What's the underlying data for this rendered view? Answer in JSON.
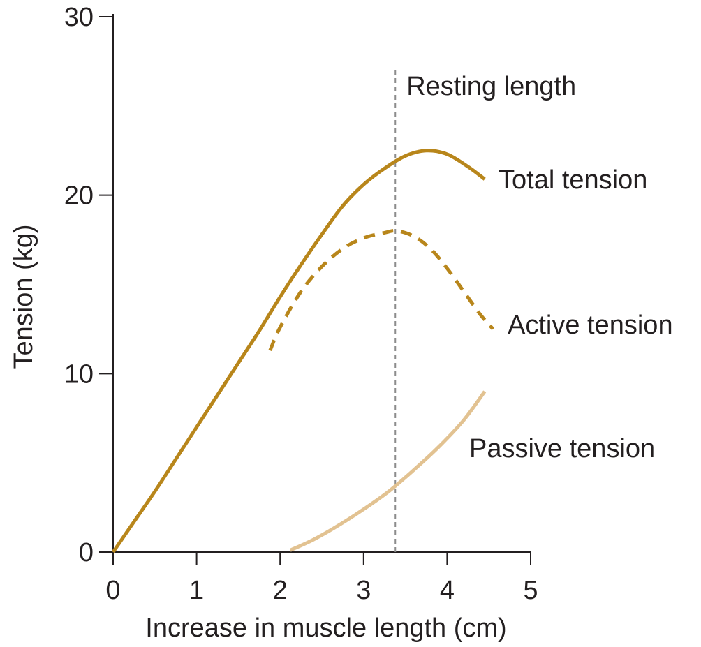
{
  "chart_data": {
    "type": "line",
    "xlabel": "Increase in muscle length (cm)",
    "ylabel": "Tension (kg)",
    "xlim": [
      0,
      5
    ],
    "ylim": [
      0,
      30
    ],
    "x_ticks": [
      "0",
      "1",
      "2",
      "3",
      "4",
      "5"
    ],
    "y_ticks": [
      "0",
      "10",
      "20",
      "30"
    ],
    "grid": false,
    "reference_line": {
      "x": 3.38,
      "label": "Resting length"
    },
    "series": [
      {
        "name": "Total tension",
        "color": "#b8861b",
        "style": "solid",
        "x": [
          0,
          0.25,
          0.5,
          0.75,
          1.0,
          1.25,
          1.5,
          1.75,
          2.0,
          2.25,
          2.5,
          2.75,
          3.0,
          3.25,
          3.5,
          3.75,
          4.0,
          4.25,
          4.45
        ],
        "y": [
          0,
          1.7,
          3.4,
          5.2,
          7.0,
          8.8,
          10.6,
          12.4,
          14.3,
          16.1,
          17.8,
          19.4,
          20.6,
          21.5,
          22.2,
          22.5,
          22.3,
          21.6,
          20.9
        ]
      },
      {
        "name": "Active tension",
        "color": "#b8861b",
        "style": "dashed",
        "x": [
          1.88,
          2.0,
          2.25,
          2.5,
          2.75,
          3.0,
          3.25,
          3.4,
          3.6,
          3.8,
          4.0,
          4.2,
          4.4,
          4.55
        ],
        "y": [
          11.3,
          12.6,
          14.6,
          16.0,
          17.0,
          17.6,
          17.9,
          18.0,
          17.7,
          17.0,
          15.9,
          14.6,
          13.3,
          12.5
        ]
      },
      {
        "name": "Passive tension",
        "color": "#e2c291",
        "style": "solid",
        "x": [
          2.12,
          2.4,
          2.7,
          3.0,
          3.3,
          3.6,
          3.9,
          4.2,
          4.45
        ],
        "y": [
          0.1,
          0.7,
          1.5,
          2.4,
          3.4,
          4.6,
          5.9,
          7.4,
          9.0
        ]
      }
    ]
  }
}
